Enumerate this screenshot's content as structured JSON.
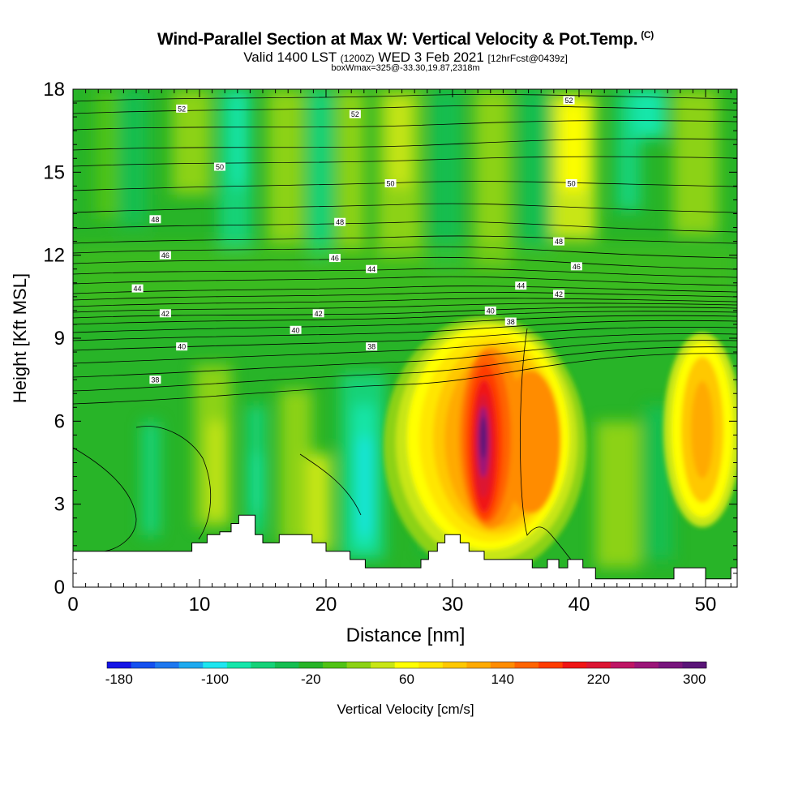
{
  "header": {
    "title": "Wind-Parallel Section at Max W: Vertical Velocity & Pot.Temp.",
    "copyright": "(C)",
    "valid_prefix": "Valid 1400 LST",
    "valid_utc": "(1200Z)",
    "valid_date": "WED 3 Feb 2021",
    "forecast": "[12hrFcst@0439z]",
    "box_info": "boxWmax=325@-33.30,19.87,2318m"
  },
  "chart_data": {
    "type": "heatmap",
    "xlabel": "Distance [nm]",
    "ylabel": "Height [Kft MSL]",
    "xlim": [
      0,
      52.5
    ],
    "ylim": [
      0,
      18
    ],
    "x_ticks": [
      0,
      10,
      20,
      30,
      40,
      50
    ],
    "y_ticks": [
      0,
      3,
      6,
      9,
      12,
      15,
      18
    ],
    "colorbar": {
      "label": "Vertical Velocity [cm/s]",
      "tick_labels": [
        "-180",
        "-100",
        "-20",
        "60",
        "140",
        "220",
        "300"
      ],
      "tick_values": [
        -180,
        -100,
        -20,
        60,
        140,
        220,
        300
      ],
      "min": -180,
      "max": 320,
      "step": 20,
      "colors": [
        "#1414e6",
        "#1450f0",
        "#1e78f0",
        "#1eaaf0",
        "#1ee6f0",
        "#14e6aa",
        "#14d278",
        "#14be50",
        "#28b428",
        "#50c314",
        "#8cd214",
        "#c8e614",
        "#ffff00",
        "#ffe600",
        "#ffc800",
        "#ffaa00",
        "#ff8c00",
        "#ff6400",
        "#ff3c00",
        "#f01414",
        "#dc1432",
        "#be1464",
        "#9b1478",
        "#78147d",
        "#5a1478"
      ]
    },
    "velocity_cores": [
      {
        "x": 32.5,
        "y": 5.5,
        "value": 320
      },
      {
        "x": 36.0,
        "y": 5.0,
        "value": 200
      },
      {
        "x": 50.0,
        "y": 6.0,
        "value": 180
      }
    ],
    "isentrope_labels": [
      {
        "text": "52",
        "x": 8.6,
        "y": 17.3
      },
      {
        "text": "52",
        "x": 22.3,
        "y": 17.1
      },
      {
        "text": "52",
        "x": 39.2,
        "y": 17.6
      },
      {
        "text": "50",
        "x": 11.6,
        "y": 15.2
      },
      {
        "text": "50",
        "x": 25.1,
        "y": 14.6
      },
      {
        "text": "50",
        "x": 39.4,
        "y": 14.6
      },
      {
        "text": "48",
        "x": 6.5,
        "y": 13.3
      },
      {
        "text": "48",
        "x": 21.1,
        "y": 13.2
      },
      {
        "text": "48",
        "x": 38.4,
        "y": 12.5
      },
      {
        "text": "46",
        "x": 7.3,
        "y": 12.0
      },
      {
        "text": "46",
        "x": 20.7,
        "y": 11.9
      },
      {
        "text": "46",
        "x": 39.8,
        "y": 11.6
      },
      {
        "text": "44",
        "x": 5.1,
        "y": 10.8
      },
      {
        "text": "44",
        "x": 23.6,
        "y": 11.5
      },
      {
        "text": "44",
        "x": 35.4,
        "y": 10.9
      },
      {
        "text": "42",
        "x": 7.3,
        "y": 9.9
      },
      {
        "text": "42",
        "x": 19.4,
        "y": 9.9
      },
      {
        "text": "42",
        "x": 38.4,
        "y": 10.6
      },
      {
        "text": "40",
        "x": 17.6,
        "y": 9.3
      },
      {
        "text": "40",
        "x": 33.0,
        "y": 10.0
      },
      {
        "text": "40",
        "x": 8.6,
        "y": 8.7
      },
      {
        "text": "38",
        "x": 34.6,
        "y": 9.6
      },
      {
        "text": "38",
        "x": 23.6,
        "y": 8.7
      },
      {
        "text": "38",
        "x": 6.5,
        "y": 7.5
      }
    ],
    "terrain": [
      [
        0,
        1.3
      ],
      [
        9.4,
        1.3
      ],
      [
        9.4,
        1.6
      ],
      [
        10.6,
        1.6
      ],
      [
        10.6,
        1.9
      ],
      [
        11.6,
        1.9
      ],
      [
        11.6,
        2.0
      ],
      [
        12.5,
        2.0
      ],
      [
        12.5,
        2.3
      ],
      [
        13.1,
        2.3
      ],
      [
        13.1,
        2.6
      ],
      [
        14.4,
        2.6
      ],
      [
        14.4,
        1.9
      ],
      [
        15.0,
        1.9
      ],
      [
        15.0,
        1.6
      ],
      [
        16.3,
        1.6
      ],
      [
        16.3,
        1.9
      ],
      [
        18.9,
        1.9
      ],
      [
        18.9,
        1.6
      ],
      [
        20.0,
        1.6
      ],
      [
        20.0,
        1.3
      ],
      [
        21.9,
        1.3
      ],
      [
        21.9,
        1.0
      ],
      [
        23.1,
        1.0
      ],
      [
        23.1,
        0.7
      ],
      [
        25.0,
        0.7
      ],
      [
        27.5,
        0.7
      ],
      [
        27.5,
        1.0
      ],
      [
        28.1,
        1.0
      ],
      [
        28.1,
        1.3
      ],
      [
        28.8,
        1.3
      ],
      [
        28.8,
        1.6
      ],
      [
        29.4,
        1.6
      ],
      [
        29.4,
        1.9
      ],
      [
        30.6,
        1.9
      ],
      [
        30.6,
        1.6
      ],
      [
        31.3,
        1.6
      ],
      [
        31.3,
        1.3
      ],
      [
        32.5,
        1.3
      ],
      [
        32.5,
        1.0
      ],
      [
        36.3,
        1.0
      ],
      [
        36.3,
        0.7
      ],
      [
        37.5,
        0.7
      ],
      [
        37.5,
        1.0
      ],
      [
        38.4,
        1.0
      ],
      [
        38.4,
        0.7
      ],
      [
        39.1,
        0.7
      ],
      [
        39.1,
        1.0
      ],
      [
        40.3,
        1.0
      ],
      [
        40.3,
        0.7
      ],
      [
        41.3,
        0.7
      ],
      [
        41.3,
        0.3
      ],
      [
        47.5,
        0.3
      ],
      [
        47.5,
        0.7
      ],
      [
        50.0,
        0.7
      ],
      [
        50.0,
        0.3
      ],
      [
        52.0,
        0.3
      ],
      [
        52.0,
        0.7
      ],
      [
        52.5,
        0.7
      ],
      [
        52.5,
        0
      ]
    ]
  }
}
